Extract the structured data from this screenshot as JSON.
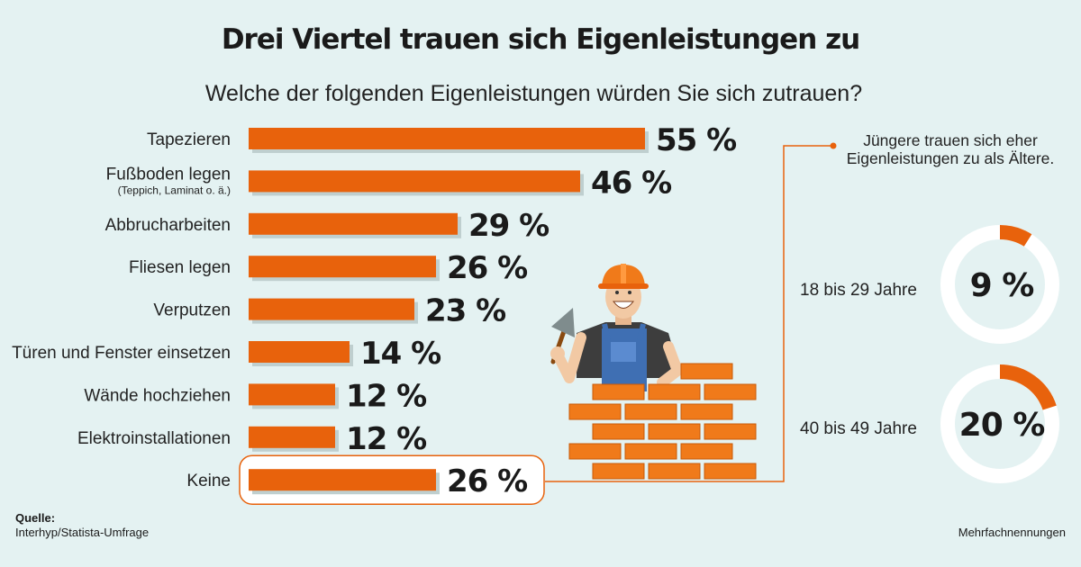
{
  "title": "Drei Viertel trauen sich Eigenleistungen zu",
  "subtitle": "Welche der folgenden Eigenleistungen würden Sie sich zutrauen?",
  "chart_data": {
    "type": "bar",
    "orientation": "horizontal",
    "categories": [
      "Tapezieren",
      "Fußboden legen",
      "Abbrucharbeiten",
      "Fliesen legen",
      "Verputzen",
      "Türen und Fenster einsetzen",
      "Wände hochziehen",
      "Elektroinstallationen",
      "Keine"
    ],
    "category_notes": [
      "",
      "(Teppich, Laminat o. ä.)",
      "",
      "",
      "",
      "",
      "",
      "",
      ""
    ],
    "values": [
      55,
      46,
      29,
      26,
      23,
      14,
      12,
      12,
      26
    ],
    "value_labels": [
      "55 %",
      "46 %",
      "29 %",
      "26 %",
      "23 %",
      "14 %",
      "12 %",
      "12 %",
      "26 %"
    ],
    "unit": "%",
    "highlighted_category": "Keine",
    "bar_color": "#e8620c"
  },
  "age_note": "Jüngere trauen sich eher Eigenleistungen zu als Ältere.",
  "age_groups": [
    {
      "label": "18 bis 29 Jahre",
      "value": 9,
      "value_label": "9 %"
    },
    {
      "label": "40 bis 49 Jahre",
      "value": 20,
      "value_label": "20 %"
    }
  ],
  "source": {
    "title": "Quelle:",
    "text": "Interhyp/Statista-Umfrage"
  },
  "footnote": "Mehrfachnennungen",
  "colors": {
    "background": "#e4f2f2",
    "accent": "#e8620c",
    "brick": "#f07a1a",
    "donut_track": "#ffffff"
  },
  "illustration": "construction-worker-with-brick-wall"
}
